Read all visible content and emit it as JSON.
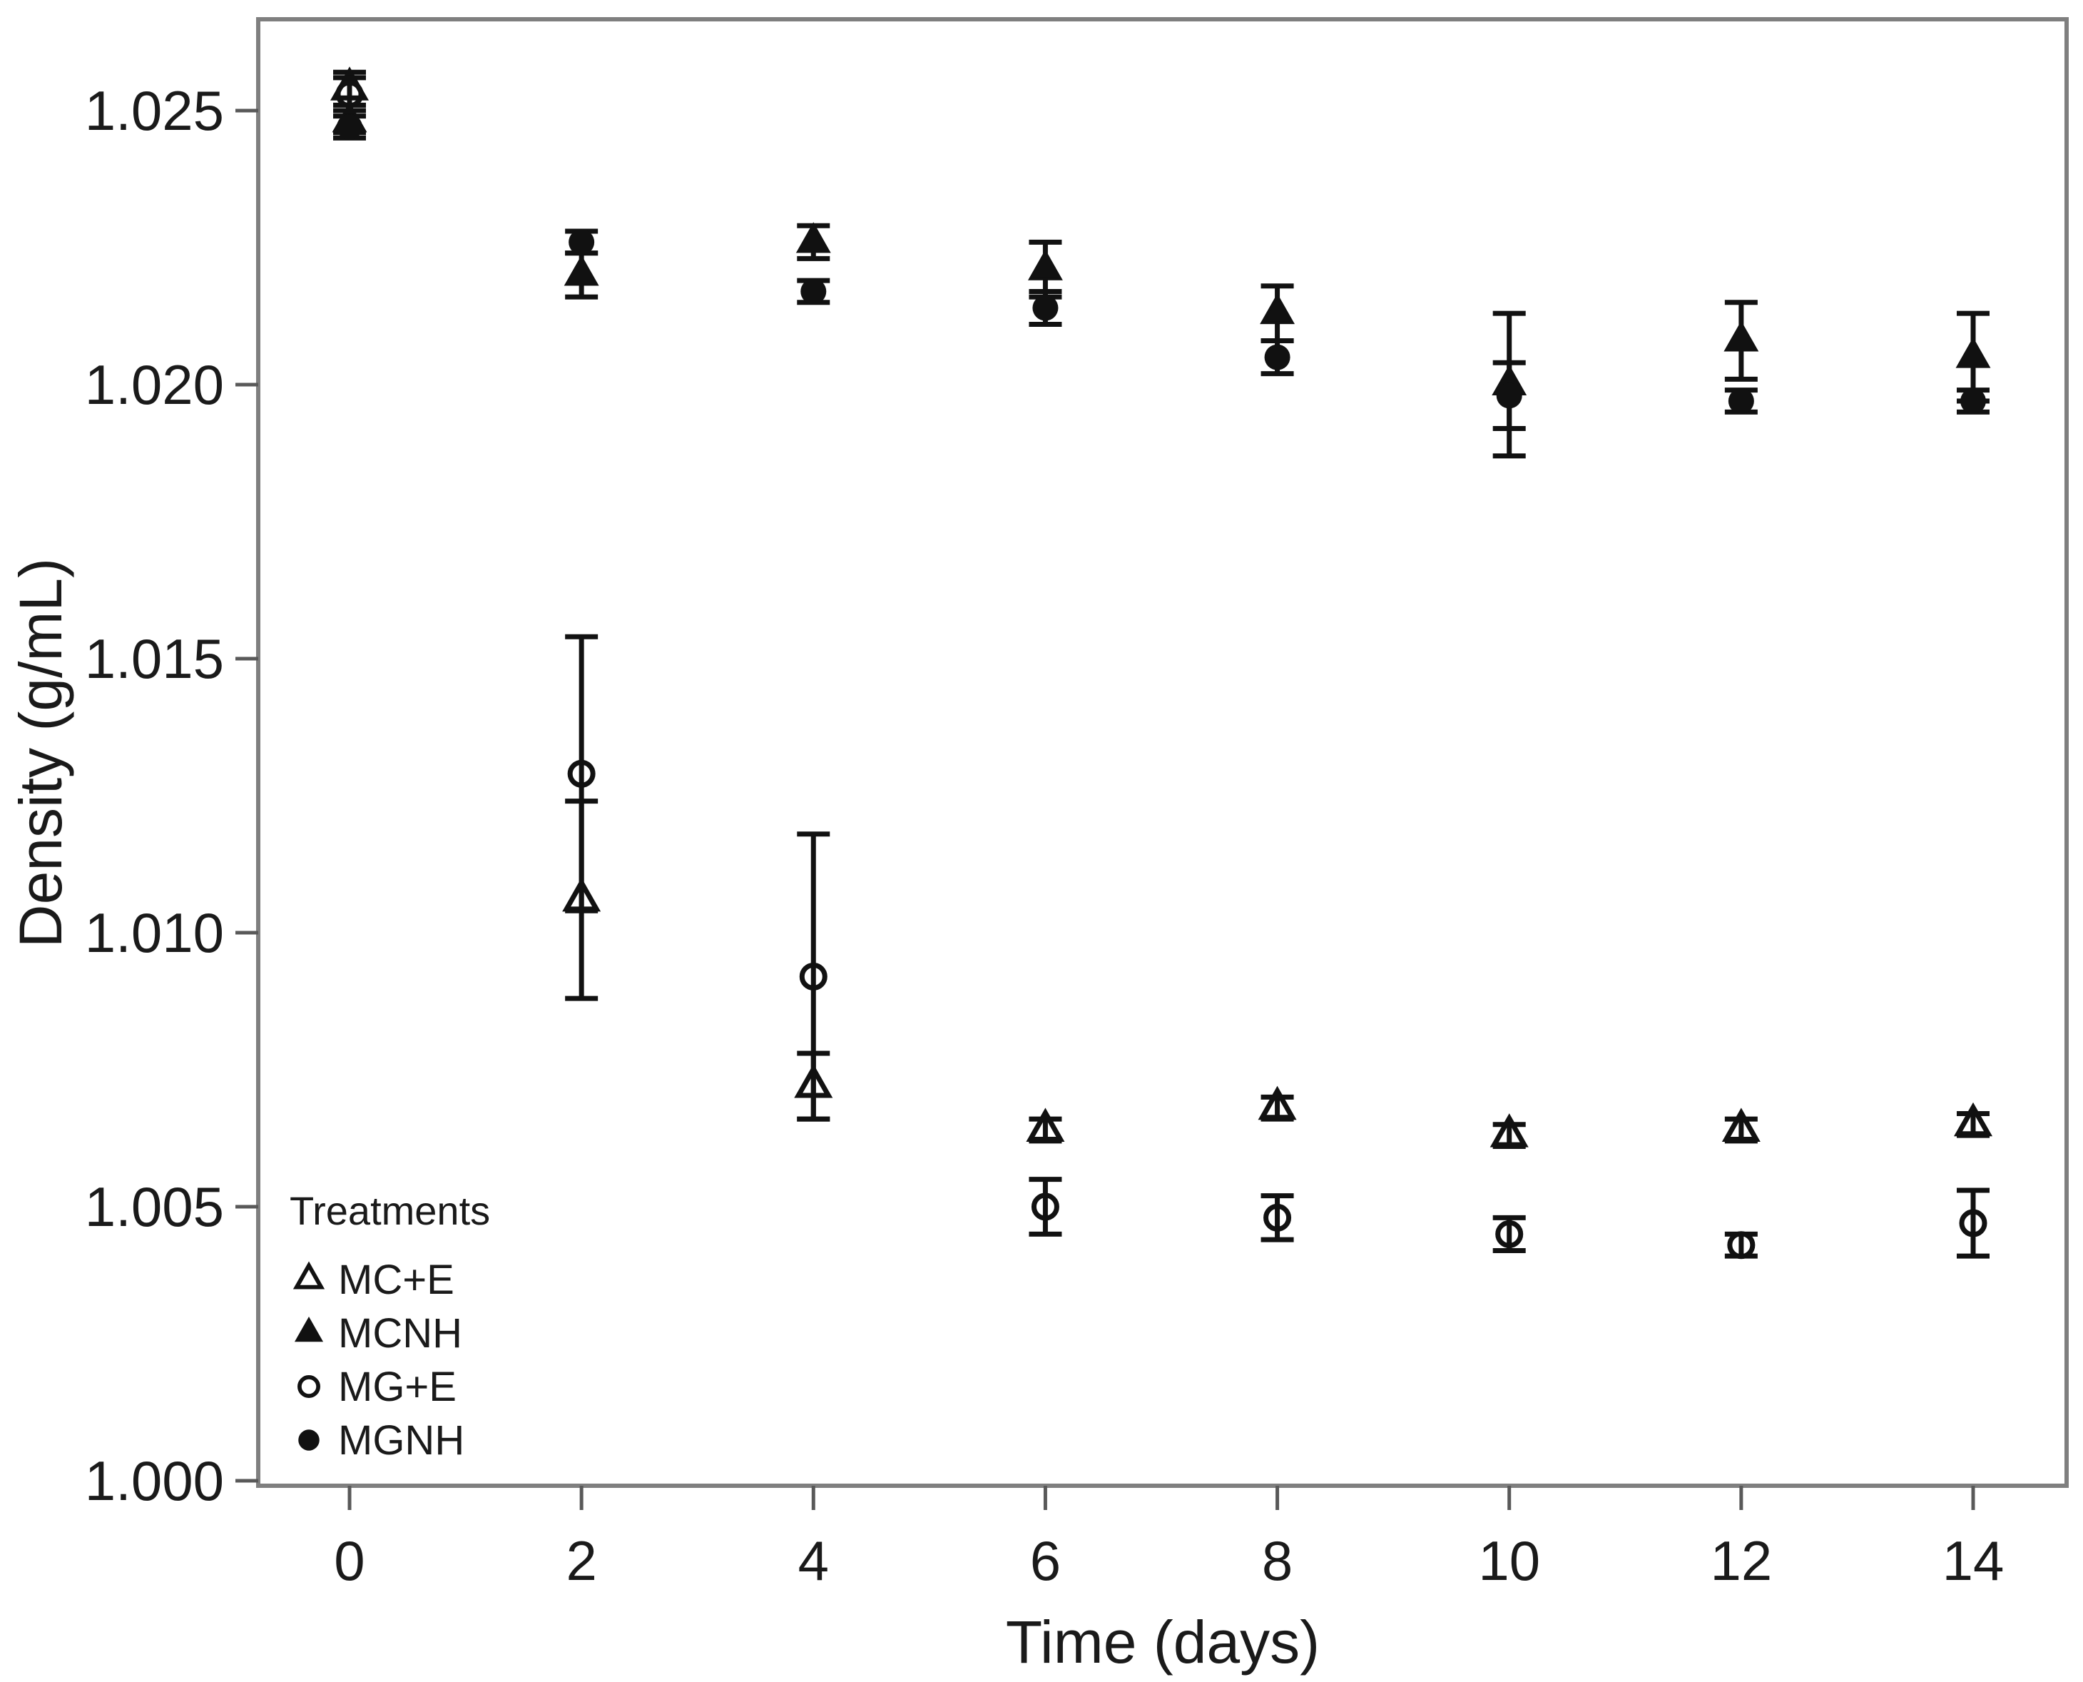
{
  "chart_data": {
    "type": "scatter",
    "title": "",
    "xlabel": "Time (days)",
    "ylabel": "Density (g/mL)",
    "xlim": [
      -0.9,
      14.9
    ],
    "ylim": [
      0.9999,
      1.0267
    ],
    "grid": false,
    "x_ticks": [
      0,
      2,
      4,
      6,
      8,
      10,
      12,
      14
    ],
    "x_tick_labels": [
      "0",
      "2",
      "4",
      "6",
      "8",
      "10",
      "12",
      "14"
    ],
    "y_ticks": [
      1.0,
      1.005,
      1.01,
      1.015,
      1.02,
      1.025
    ],
    "y_tick_labels": [
      "1.000",
      "1.005",
      "1.010",
      "1.015",
      "1.020",
      "1.025"
    ],
    "legend": {
      "title": "Treatments",
      "position": "inside-bottom-left"
    },
    "x": [
      0,
      2,
      4,
      6,
      8,
      10,
      12,
      14
    ],
    "series": [
      {
        "name": "MC+E",
        "marker": "triangle-open",
        "values": [
          1.0254,
          1.0106,
          1.0072,
          1.0064,
          1.0068,
          1.0063,
          1.0064,
          1.0065
        ],
        "errors": [
          0.0003,
          0.0018,
          0.0006,
          0.0002,
          0.0002,
          0.0002,
          0.0002,
          0.0002
        ]
      },
      {
        "name": "MCNH",
        "marker": "triangle-filled",
        "values": [
          1.0248,
          1.022,
          1.0226,
          1.0221,
          1.0213,
          1.02,
          1.0208,
          1.0205
        ],
        "errors": [
          0.0002,
          0.0004,
          0.0003,
          0.0005,
          0.0005,
          0.0013,
          0.0007,
          0.0008
        ]
      },
      {
        "name": "MG+E",
        "marker": "circle-open",
        "values": [
          1.0253,
          1.0129,
          1.0092,
          1.005,
          1.0048,
          1.0045,
          1.0043,
          1.0047
        ],
        "errors": [
          0.0003,
          0.0025,
          0.0026,
          0.0005,
          0.0004,
          0.0003,
          0.0002,
          0.0006
        ]
      },
      {
        "name": "MGNH",
        "marker": "circle-filled",
        "values": [
          1.0247,
          1.0226,
          1.0217,
          1.0214,
          1.0205,
          1.0198,
          1.0197,
          1.0197
        ],
        "errors": [
          0.0002,
          0.0002,
          0.0002,
          0.0003,
          0.0003,
          0.0006,
          0.0002,
          0.0002
        ]
      }
    ],
    "colors": {
      "marker": "#111111",
      "error_bar": "#111111",
      "frame": "#7f7f7f",
      "tick": "#595959",
      "text": "#1a1a1a"
    }
  }
}
